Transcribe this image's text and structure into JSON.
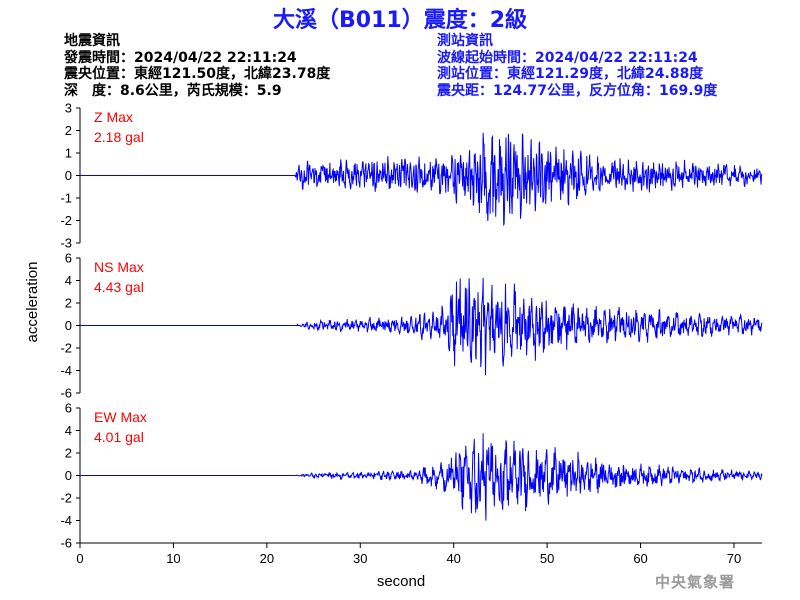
{
  "title": "大溪（B011）震度：2級",
  "quake_info": {
    "heading": "地震資訊",
    "origin_time": "發震時間：2024/04/22 22:11:24",
    "epicenter": "震央位置：東經121.50度，北緯23.78度",
    "depth_mag": "深　度：8.6公里，芮氏規模：5.9"
  },
  "station_info": {
    "heading": "測站資訊",
    "wave_start": "波線起始時間：2024/04/22 22:11:24",
    "location": "測站位置：東經121.29度，北緯24.88度",
    "distance": "震央距：124.77公里，反方位角：169.9度"
  },
  "watermark": "中央氣象署",
  "chart_data": {
    "type": "line",
    "xlabel": "second",
    "ylabel": "acceleration",
    "xlim": [
      0,
      73
    ],
    "xticks": [
      0,
      10,
      20,
      30,
      40,
      50,
      60,
      70
    ],
    "line_color": "#0000ff",
    "panels": [
      {
        "name": "Z",
        "label_line1": "Z Max",
        "label_line2": "2.18 gal",
        "label_color": "#ff0000",
        "max_gal": 2.18,
        "ylim": [
          -3,
          3
        ],
        "yticks": [
          3,
          2,
          1,
          0,
          -1,
          -2,
          -3
        ],
        "onset_s": 23.0,
        "envelope": [
          [
            0,
            0
          ],
          [
            23,
            0
          ],
          [
            23.5,
            0.55
          ],
          [
            30,
            0.7
          ],
          [
            38,
            0.75
          ],
          [
            42,
            1.2
          ],
          [
            44.5,
            2.18
          ],
          [
            47.5,
            1.8
          ],
          [
            50,
            1.2
          ],
          [
            55,
            0.8
          ],
          [
            65,
            0.55
          ],
          [
            73,
            0.35
          ]
        ]
      },
      {
        "name": "NS",
        "label_line1": "NS Max",
        "label_line2": "4.43 gal",
        "label_color": "#ff0000",
        "max_gal": 4.43,
        "ylim": [
          -6,
          6
        ],
        "yticks": [
          6,
          4,
          2,
          0,
          -2,
          -4,
          -6
        ],
        "onset_s": 23.0,
        "envelope": [
          [
            0,
            0
          ],
          [
            23,
            0
          ],
          [
            25,
            0.35
          ],
          [
            30,
            0.5
          ],
          [
            35,
            0.6
          ],
          [
            39,
            1.3
          ],
          [
            40.5,
            4.43
          ],
          [
            44,
            3.4
          ],
          [
            47,
            2.6
          ],
          [
            50,
            2.2
          ],
          [
            55,
            1.3
          ],
          [
            62,
            1.0
          ],
          [
            73,
            0.55
          ]
        ]
      },
      {
        "name": "EW",
        "label_line1": "EW Max",
        "label_line2": "4.01 gal",
        "label_color": "#ff0000",
        "max_gal": 4.01,
        "ylim": [
          -6,
          6
        ],
        "yticks": [
          6,
          4,
          2,
          0,
          -2,
          -4,
          -6
        ],
        "onset_s": 23.0,
        "envelope": [
          [
            0,
            0
          ],
          [
            23,
            0
          ],
          [
            25,
            0.25
          ],
          [
            30,
            0.35
          ],
          [
            36,
            0.5
          ],
          [
            39,
            1.6
          ],
          [
            41.5,
            3.6
          ],
          [
            43.5,
            4.01
          ],
          [
            46,
            3.0
          ],
          [
            50,
            2.4
          ],
          [
            55,
            1.6
          ],
          [
            60,
            1.0
          ],
          [
            65,
            0.7
          ],
          [
            73,
            0.35
          ]
        ]
      }
    ]
  }
}
